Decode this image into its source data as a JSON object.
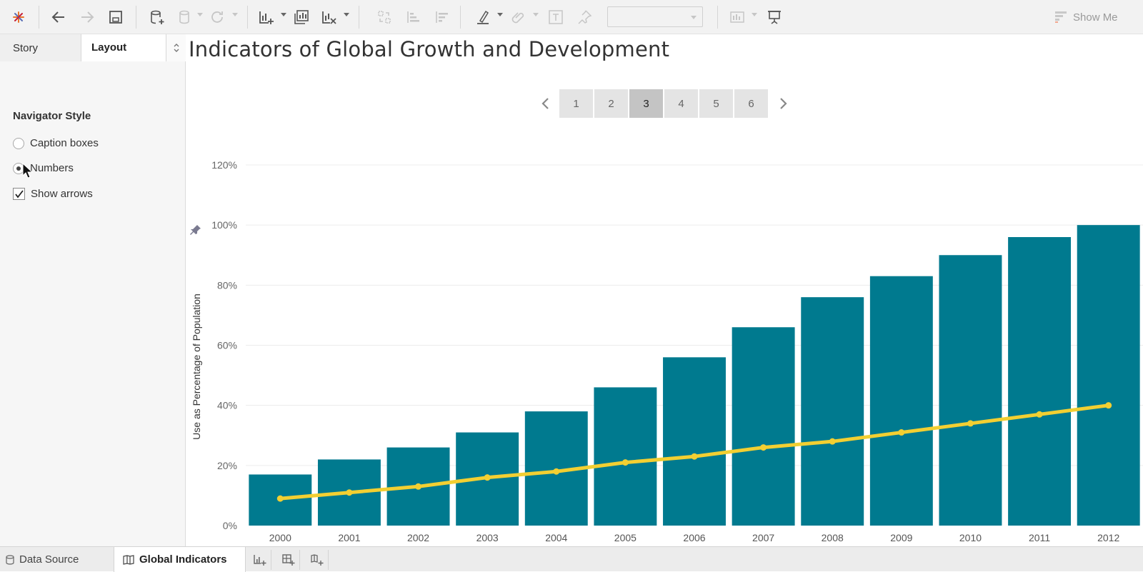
{
  "toolbar": {
    "icons": [
      "tableau-logo-icon",
      "undo-icon",
      "redo-icon",
      "save-icon",
      "new-datasource-icon",
      "pause-updates-icon",
      "refresh-icon",
      "new-worksheet-icon",
      "duplicate-sheet-icon",
      "clear-sheet-icon",
      "swap-icon",
      "sort-ascending-icon",
      "sort-descending-icon",
      "highlight-icon",
      "group-icon",
      "label-icon",
      "pin-icon",
      "presentation-icon"
    ],
    "show_me_label": "Show Me"
  },
  "left_pane": {
    "tabs": [
      {
        "label": "Story",
        "active": false
      },
      {
        "label": "Layout",
        "active": true
      }
    ],
    "section_title": "Navigator Style",
    "options": {
      "caption_boxes": {
        "label": "Caption boxes",
        "selected": false
      },
      "numbers": {
        "label": "Numbers",
        "selected": true
      },
      "show_arrows": {
        "label": "Show arrows",
        "checked": true
      }
    }
  },
  "story": {
    "title": "Indicators of Global Growth and Development",
    "navigator": {
      "points": [
        "1",
        "2",
        "3",
        "4",
        "5",
        "6"
      ],
      "active": "3"
    }
  },
  "chart_data": {
    "type": "bar",
    "categories": [
      "2000",
      "2001",
      "2002",
      "2003",
      "2004",
      "2005",
      "2006",
      "2007",
      "2008",
      "2009",
      "2010",
      "2011",
      "2012"
    ],
    "series": [
      {
        "type": "bar",
        "values": [
          17,
          22,
          26,
          31,
          38,
          46,
          56,
          66,
          76,
          83,
          90,
          96,
          100
        ],
        "color": "#007a8f"
      },
      {
        "type": "line",
        "values": [
          9,
          11,
          13,
          16,
          18,
          21,
          23,
          26,
          28,
          31,
          34,
          37,
          40
        ],
        "color": "#f2cf32"
      }
    ],
    "ylabel": "Use as Percentage of Population",
    "ylim": [
      0,
      120
    ],
    "yticks": [
      "0%",
      "20%",
      "40%",
      "60%",
      "80%",
      "100%",
      "120%"
    ],
    "grid": true
  },
  "bottom_bar": {
    "data_source_label": "Data Source",
    "active_sheet_label": "Global Indicators"
  }
}
